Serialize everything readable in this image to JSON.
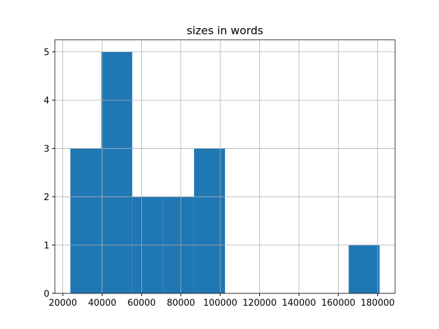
{
  "chart_data": {
    "type": "histogram",
    "title": "sizes in words",
    "bins": [
      23800,
      39520,
      55240,
      70960,
      86680,
      102400,
      118120,
      133840,
      149560,
      165280,
      181000
    ],
    "values": [
      3,
      5,
      2,
      2,
      3,
      0,
      0,
      0,
      0,
      1
    ],
    "color": "#1f77b4",
    "xlim": [
      15940,
      188860
    ],
    "xticks": [
      20000,
      40000,
      60000,
      80000,
      100000,
      120000,
      140000,
      160000,
      180000
    ],
    "ylim": [
      0,
      5.25
    ],
    "yticks": [
      0,
      1,
      2,
      3,
      4,
      5
    ],
    "grid": true
  }
}
